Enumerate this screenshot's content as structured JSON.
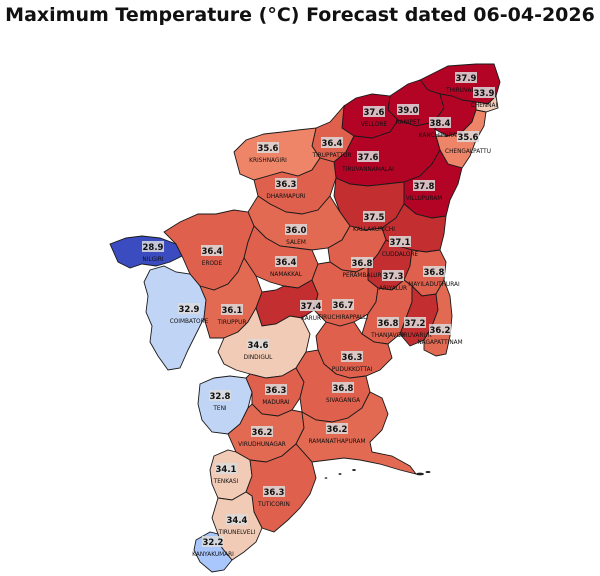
{
  "title": "Maximum Temperature (°C) Forecast dated 06-04-2026",
  "colors": {
    "c28": "#3b4cc0",
    "c32": "#aac7fd",
    "c33": "#c0d4f5",
    "c34": "#f2cbb7",
    "c35": "#ee8468",
    "c36": "#de604d",
    "c36b": "#e26952",
    "c37": "#c32e31",
    "c38": "#b40426"
  },
  "districts": [
    {
      "name": "THIRUVALLUR",
      "value": "37.9"
    },
    {
      "name": "CHENNAI",
      "value": "33.9"
    },
    {
      "name": "VELLORE",
      "value": "37.6"
    },
    {
      "name": "RANIPET",
      "value": "39.0"
    },
    {
      "name": "KANCHIPURAM",
      "value": "38.4"
    },
    {
      "name": "CHENGALPATTU",
      "value": "35.6"
    },
    {
      "name": "KRISHNAGIRI",
      "value": "35.6"
    },
    {
      "name": "TIRUPPATTUR",
      "value": "36.4"
    },
    {
      "name": "TIRUVANNAMALAI",
      "value": "37.6"
    },
    {
      "name": "DHARMAPURI",
      "value": "36.3"
    },
    {
      "name": "VILLUPURAM",
      "value": "37.8"
    },
    {
      "name": "KALLAKURICHI",
      "value": "37.5"
    },
    {
      "name": "SALEM",
      "value": "36.0"
    },
    {
      "name": "CUDDALORE",
      "value": "37.1"
    },
    {
      "name": "NILGIRI",
      "value": "28.9"
    },
    {
      "name": "ERODE",
      "value": "36.4"
    },
    {
      "name": "NAMAKKAL",
      "value": "36.4"
    },
    {
      "name": "PERAMBALUR",
      "value": "36.8"
    },
    {
      "name": "ARIYALUR",
      "value": "37.3"
    },
    {
      "name": "MAYILADUTHURAI",
      "value": "36.8"
    },
    {
      "name": "COIMBATORE",
      "value": "32.9"
    },
    {
      "name": "TIRUPPUR",
      "value": "36.1"
    },
    {
      "name": "KARUR",
      "value": "37.4"
    },
    {
      "name": "TIRUCHIRAPPALLI",
      "value": "36.7"
    },
    {
      "name": "THANJAVUR",
      "value": "36.8"
    },
    {
      "name": "TIRUVARUR",
      "value": "37.2"
    },
    {
      "name": "NAGAPATTINAM",
      "value": "36.2"
    },
    {
      "name": "DINDIGUL",
      "value": "34.6"
    },
    {
      "name": "PUDUKKOTTAI",
      "value": "36.3"
    },
    {
      "name": "TENI",
      "value": "32.8"
    },
    {
      "name": "MADURAI",
      "value": "36.3"
    },
    {
      "name": "SIVAGANGA",
      "value": "36.8"
    },
    {
      "name": "VIRUDHUNAGAR",
      "value": "36.2"
    },
    {
      "name": "RAMANATHAPURAM",
      "value": "36.2"
    },
    {
      "name": "TENKASI",
      "value": "34.1"
    },
    {
      "name": "TUTICORIN",
      "value": "36.3"
    },
    {
      "name": "TIRUNELVELI",
      "value": "34.4"
    },
    {
      "name": "KANYAKUMARI",
      "value": "32.2"
    }
  ]
}
